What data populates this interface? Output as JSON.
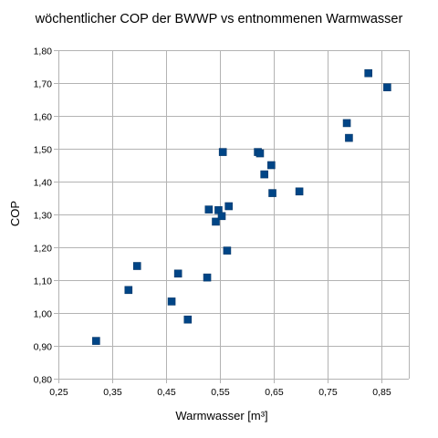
{
  "chart_data": {
    "type": "scatter",
    "title": "wöchentlicher COP der BWWP vs entnommenen Warmwasser",
    "xlabel": "Warmwasser [m³]",
    "ylabel": "COP",
    "xlim": [
      0.25,
      0.9
    ],
    "ylim": [
      0.8,
      1.8
    ],
    "x_ticks": [
      0.25,
      0.35,
      0.45,
      0.55,
      0.65,
      0.75,
      0.85
    ],
    "x_tick_labels": [
      "0,25",
      "0,35",
      "0,45",
      "0,55",
      "0,65",
      "0,75",
      "0,85"
    ],
    "y_ticks": [
      0.8,
      0.9,
      1.0,
      1.1,
      1.2,
      1.3,
      1.4,
      1.5,
      1.6,
      1.7,
      1.8
    ],
    "y_tick_labels": [
      "0,80",
      "0,90",
      "1,00",
      "1,10",
      "1,20",
      "1,30",
      "1,40",
      "1,50",
      "1,60",
      "1,70",
      "1,80"
    ],
    "grid": true,
    "legend": "none",
    "marker_color": "#004586",
    "points": [
      {
        "x": 0.32,
        "y": 0.915
      },
      {
        "x": 0.38,
        "y": 1.07
      },
      {
        "x": 0.396,
        "y": 1.143
      },
      {
        "x": 0.46,
        "y": 1.035
      },
      {
        "x": 0.472,
        "y": 1.12
      },
      {
        "x": 0.49,
        "y": 0.98
      },
      {
        "x": 0.526,
        "y": 1.108
      },
      {
        "x": 0.529,
        "y": 1.315
      },
      {
        "x": 0.542,
        "y": 1.278
      },
      {
        "x": 0.547,
        "y": 1.313
      },
      {
        "x": 0.553,
        "y": 1.295
      },
      {
        "x": 0.555,
        "y": 1.49
      },
      {
        "x": 0.563,
        "y": 1.19
      },
      {
        "x": 0.566,
        "y": 1.325
      },
      {
        "x": 0.62,
        "y": 1.49
      },
      {
        "x": 0.624,
        "y": 1.486
      },
      {
        "x": 0.632,
        "y": 1.422
      },
      {
        "x": 0.645,
        "y": 1.45
      },
      {
        "x": 0.647,
        "y": 1.365
      },
      {
        "x": 0.697,
        "y": 1.37
      },
      {
        "x": 0.785,
        "y": 1.578
      },
      {
        "x": 0.789,
        "y": 1.533
      },
      {
        "x": 0.825,
        "y": 1.73
      },
      {
        "x": 0.86,
        "y": 1.687
      }
    ]
  }
}
